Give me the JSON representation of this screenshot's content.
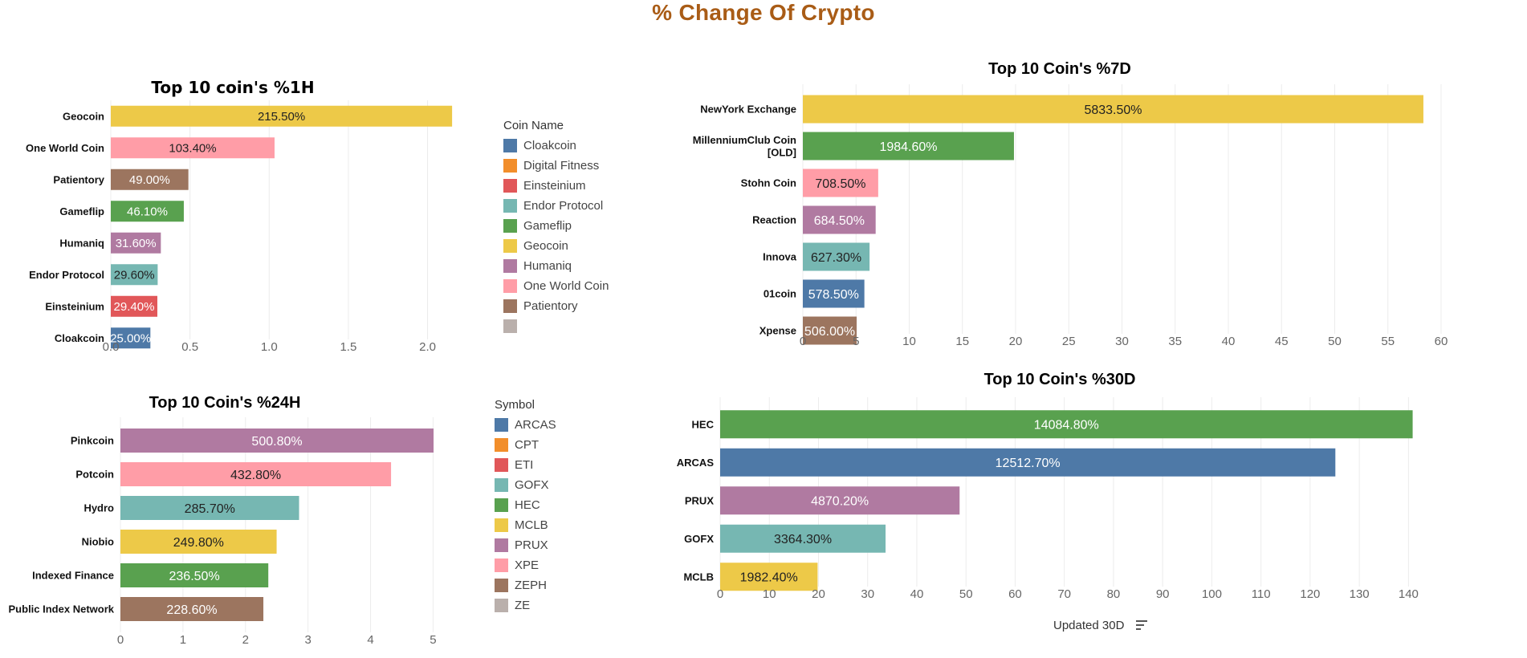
{
  "page": {
    "title": "% Change Of Crypto"
  },
  "chart_data": [
    {
      "id": "h1",
      "type": "bar",
      "orientation": "horizontal",
      "title": "Top 10 coin's %1H",
      "title_color": "#d9b43c",
      "categories": [
        "Geocoin",
        "One World Coin",
        "Patientory",
        "Gameflip",
        "Humaniq",
        "Endor Protocol",
        "Einsteinium",
        "Cloakcoin"
      ],
      "values": [
        2.155,
        1.034,
        0.49,
        0.461,
        0.316,
        0.296,
        0.294,
        0.25
      ],
      "data_labels": [
        "215.50%",
        "103.40%",
        "49.00%",
        "46.10%",
        "31.60%",
        "29.60%",
        "29.40%",
        "25.00%"
      ],
      "colors": [
        "#edc948",
        "#ff9da7",
        "#9c755f",
        "#59a14f",
        "#b07aa1",
        "#76b7b2",
        "#e15759",
        "#4e79a7"
      ],
      "label_colors": [
        "#222222",
        "#222222",
        "#ffffff",
        "#ffffff",
        "#ffffff",
        "#222222",
        "#ffffff",
        "#ffffff"
      ],
      "xlim": [
        0,
        2.2
      ],
      "xticks": [
        0,
        0.5,
        1,
        1.5,
        2
      ],
      "xtick_labels": [
        "0.0",
        "0.5",
        "1.0",
        "1.5",
        "2.0"
      ],
      "grid": true
    },
    {
      "id": "d7",
      "type": "bar",
      "orientation": "horizontal",
      "title": "Top 10 Coin's %7D",
      "title_color": "#d9b43c",
      "categories": [
        "NewYork Exchange",
        "MillenniumClub Coin [OLD]",
        "Stohn Coin",
        "Reaction",
        "Innova",
        "01coin",
        "Xpense"
      ],
      "values": [
        58.335,
        19.846,
        7.085,
        6.845,
        6.273,
        5.785,
        5.06
      ],
      "data_labels": [
        "5833.50%",
        "1984.60%",
        "708.50%",
        "684.50%",
        "627.30%",
        "578.50%",
        "506.00%"
      ],
      "colors": [
        "#edc948",
        "#59a14f",
        "#ff9da7",
        "#b07aa1",
        "#76b7b2",
        "#4e79a7",
        "#9c755f"
      ],
      "label_colors": [
        "#222222",
        "#ffffff",
        "#222222",
        "#ffffff",
        "#222222",
        "#ffffff",
        "#ffffff"
      ],
      "xlim": [
        0,
        60
      ],
      "xticks": [
        0,
        5,
        10,
        15,
        20,
        25,
        30,
        35,
        40,
        45,
        50,
        55,
        60
      ],
      "xtick_labels": [
        "0",
        "5",
        "10",
        "15",
        "20",
        "25",
        "30",
        "35",
        "40",
        "45",
        "50",
        "55",
        "60"
      ],
      "grid": true
    },
    {
      "id": "h24",
      "type": "bar",
      "orientation": "horizontal",
      "title": "Top 10 Coin's %24H",
      "title_color": "#b07aa1",
      "categories": [
        "Pinkcoin",
        "Potcoin",
        "Hydro",
        "Niobio",
        "Indexed Finance",
        "Public Index Network"
      ],
      "values": [
        5.008,
        4.328,
        2.857,
        2.498,
        2.365,
        2.286
      ],
      "data_labels": [
        "500.80%",
        "432.80%",
        "285.70%",
        "249.80%",
        "236.50%",
        "228.60%"
      ],
      "colors": [
        "#b07aa1",
        "#ff9da7",
        "#76b7b2",
        "#edc948",
        "#59a14f",
        "#9c755f"
      ],
      "label_colors": [
        "#ffffff",
        "#222222",
        "#222222",
        "#222222",
        "#ffffff",
        "#ffffff"
      ],
      "xlim": [
        0,
        5.2
      ],
      "xticks": [
        0,
        1,
        2,
        3,
        4,
        5
      ],
      "xtick_labels": [
        "0",
        "1",
        "2",
        "3",
        "4",
        "5"
      ],
      "grid": true
    },
    {
      "id": "d30",
      "type": "bar",
      "orientation": "horizontal",
      "title": "Top 10 Coin's %30D",
      "title_color": "#59a14f",
      "categories": [
        "HEC",
        "ARCAS",
        "PRUX",
        "GOFX",
        "MCLB"
      ],
      "values": [
        140.848,
        125.127,
        48.702,
        33.643,
        19.824
      ],
      "data_labels": [
        "14084.80%",
        "12512.70%",
        "4870.20%",
        "3364.30%",
        "1982.40%"
      ],
      "colors": [
        "#59a14f",
        "#4e79a7",
        "#b07aa1",
        "#76b7b2",
        "#edc948"
      ],
      "label_colors": [
        "#ffffff",
        "#ffffff",
        "#ffffff",
        "#222222",
        "#222222"
      ],
      "xlim": [
        0,
        145
      ],
      "xticks": [
        0,
        10,
        20,
        30,
        40,
        50,
        60,
        70,
        80,
        90,
        100,
        110,
        120,
        130,
        140
      ],
      "xtick_labels": [
        "0",
        "10",
        "20",
        "30",
        "40",
        "50",
        "60",
        "70",
        "80",
        "90",
        "100",
        "110",
        "120",
        "130",
        "140"
      ],
      "xlabel": "Updated 30D",
      "grid": true
    }
  ],
  "legends": {
    "coin_name": {
      "title": "Coin Name",
      "items": [
        {
          "label": "Cloakcoin",
          "color": "#4e79a7"
        },
        {
          "label": "Digital Fitness",
          "color": "#f28e2b"
        },
        {
          "label": "Einsteinium",
          "color": "#e15759"
        },
        {
          "label": "Endor Protocol",
          "color": "#76b7b2"
        },
        {
          "label": "Gameflip",
          "color": "#59a14f"
        },
        {
          "label": "Geocoin",
          "color": "#edc948"
        },
        {
          "label": "Humaniq",
          "color": "#b07aa1"
        },
        {
          "label": "One World Coin",
          "color": "#ff9da7"
        },
        {
          "label": "Patientory",
          "color": "#9c755f"
        },
        {
          "label": "",
          "color": "#bab0ac"
        }
      ]
    },
    "symbol": {
      "title": "Symbol",
      "items": [
        {
          "label": "ARCAS",
          "color": "#4e79a7"
        },
        {
          "label": "CPT",
          "color": "#f28e2b"
        },
        {
          "label": "ETI",
          "color": "#e15759"
        },
        {
          "label": "GOFX",
          "color": "#76b7b2"
        },
        {
          "label": "HEC",
          "color": "#59a14f"
        },
        {
          "label": "MCLB",
          "color": "#edc948"
        },
        {
          "label": "PRUX",
          "color": "#b07aa1"
        },
        {
          "label": "XPE",
          "color": "#ff9da7"
        },
        {
          "label": "ZEPH",
          "color": "#9c755f"
        },
        {
          "label": "ZE",
          "color": "#bab0ac"
        }
      ]
    }
  },
  "icons": {
    "sort": "sort-descending-icon"
  }
}
